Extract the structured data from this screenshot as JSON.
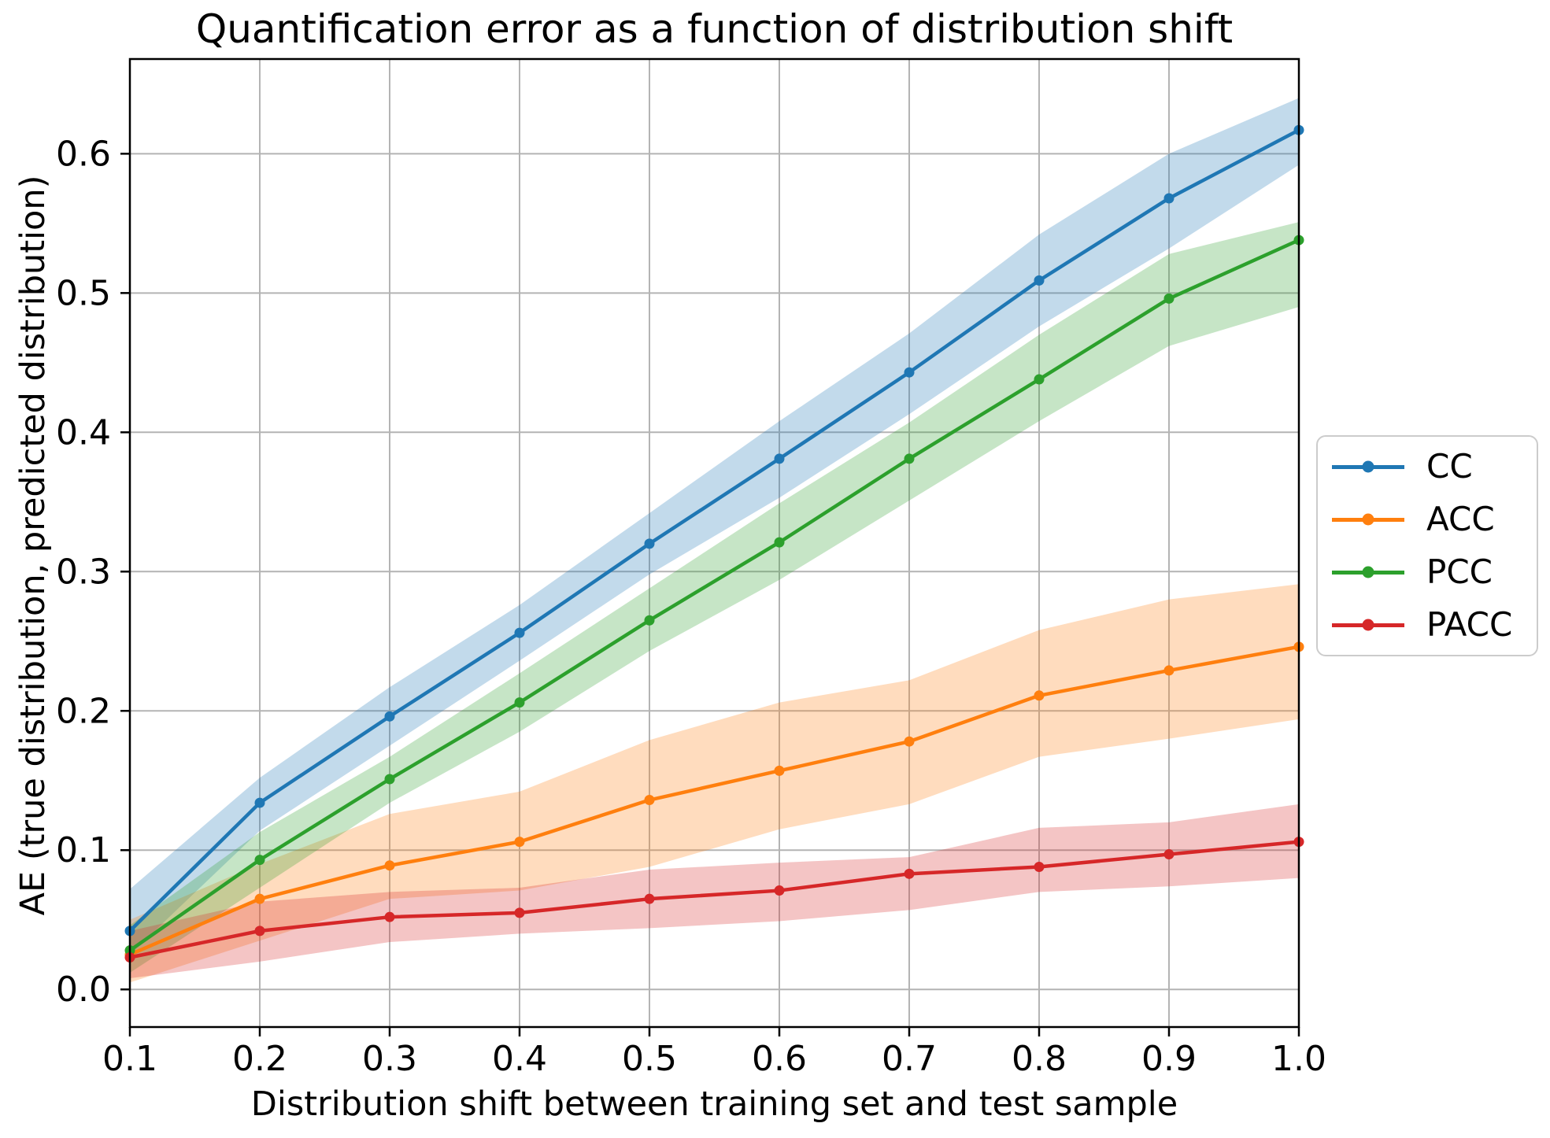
{
  "chart_data": {
    "type": "line",
    "title": "Quantification error as a function of distribution shift",
    "xlabel": "Distribution shift between training set and test sample",
    "ylabel": "AE (true distribution, predicted distribution)",
    "x": [
      0.1,
      0.2,
      0.3,
      0.4,
      0.5,
      0.6,
      0.7,
      0.8,
      0.9,
      1.0
    ],
    "xlim": [
      0.1,
      1.0
    ],
    "ylim": [
      -0.027,
      0.668
    ],
    "x_tick_labels": [
      "0.1",
      "0.2",
      "0.3",
      "0.4",
      "0.5",
      "0.6",
      "0.7",
      "0.8",
      "0.9",
      "1.0"
    ],
    "y_tick_labels": [
      "0.0",
      "0.1",
      "0.2",
      "0.3",
      "0.4",
      "0.5",
      "0.6"
    ],
    "grid": true,
    "grid_color": "#b4b4b4",
    "spine_color": "#000000",
    "band_opacity": 0.27,
    "legend_position": "center right outside",
    "series": [
      {
        "name": "CC",
        "color": "#1f77b4",
        "values": [
          0.042,
          0.134,
          0.196,
          0.256,
          0.32,
          0.381,
          0.443,
          0.509,
          0.568,
          0.617
        ],
        "band_low": [
          0.025,
          0.114,
          0.175,
          0.236,
          0.298,
          0.353,
          0.413,
          0.476,
          0.532,
          0.592
        ],
        "band_high": [
          0.072,
          0.152,
          0.217,
          0.276,
          0.342,
          0.408,
          0.471,
          0.542,
          0.6,
          0.64
        ]
      },
      {
        "name": "ACC",
        "color": "#ff7f0e",
        "values": [
          0.025,
          0.065,
          0.089,
          0.106,
          0.136,
          0.157,
          0.178,
          0.211,
          0.229,
          0.246
        ],
        "band_low": [
          0.005,
          0.035,
          0.065,
          0.071,
          0.088,
          0.115,
          0.133,
          0.167,
          0.18,
          0.194
        ],
        "band_high": [
          0.05,
          0.09,
          0.126,
          0.142,
          0.179,
          0.206,
          0.222,
          0.258,
          0.28,
          0.291
        ]
      },
      {
        "name": "PCC",
        "color": "#2ca02c",
        "values": [
          0.028,
          0.093,
          0.151,
          0.206,
          0.265,
          0.321,
          0.381,
          0.438,
          0.496,
          0.538
        ],
        "band_low": [
          0.012,
          0.073,
          0.134,
          0.185,
          0.243,
          0.294,
          0.351,
          0.408,
          0.462,
          0.49
        ],
        "band_high": [
          0.046,
          0.113,
          0.167,
          0.227,
          0.288,
          0.349,
          0.407,
          0.47,
          0.528,
          0.551
        ]
      },
      {
        "name": "PACC",
        "color": "#d62728",
        "values": [
          0.023,
          0.042,
          0.052,
          0.055,
          0.065,
          0.071,
          0.083,
          0.088,
          0.097,
          0.106
        ],
        "band_low": [
          0.008,
          0.02,
          0.034,
          0.04,
          0.044,
          0.049,
          0.057,
          0.07,
          0.074,
          0.08
        ],
        "band_high": [
          0.042,
          0.063,
          0.07,
          0.073,
          0.086,
          0.091,
          0.095,
          0.116,
          0.12,
          0.133
        ]
      }
    ]
  }
}
